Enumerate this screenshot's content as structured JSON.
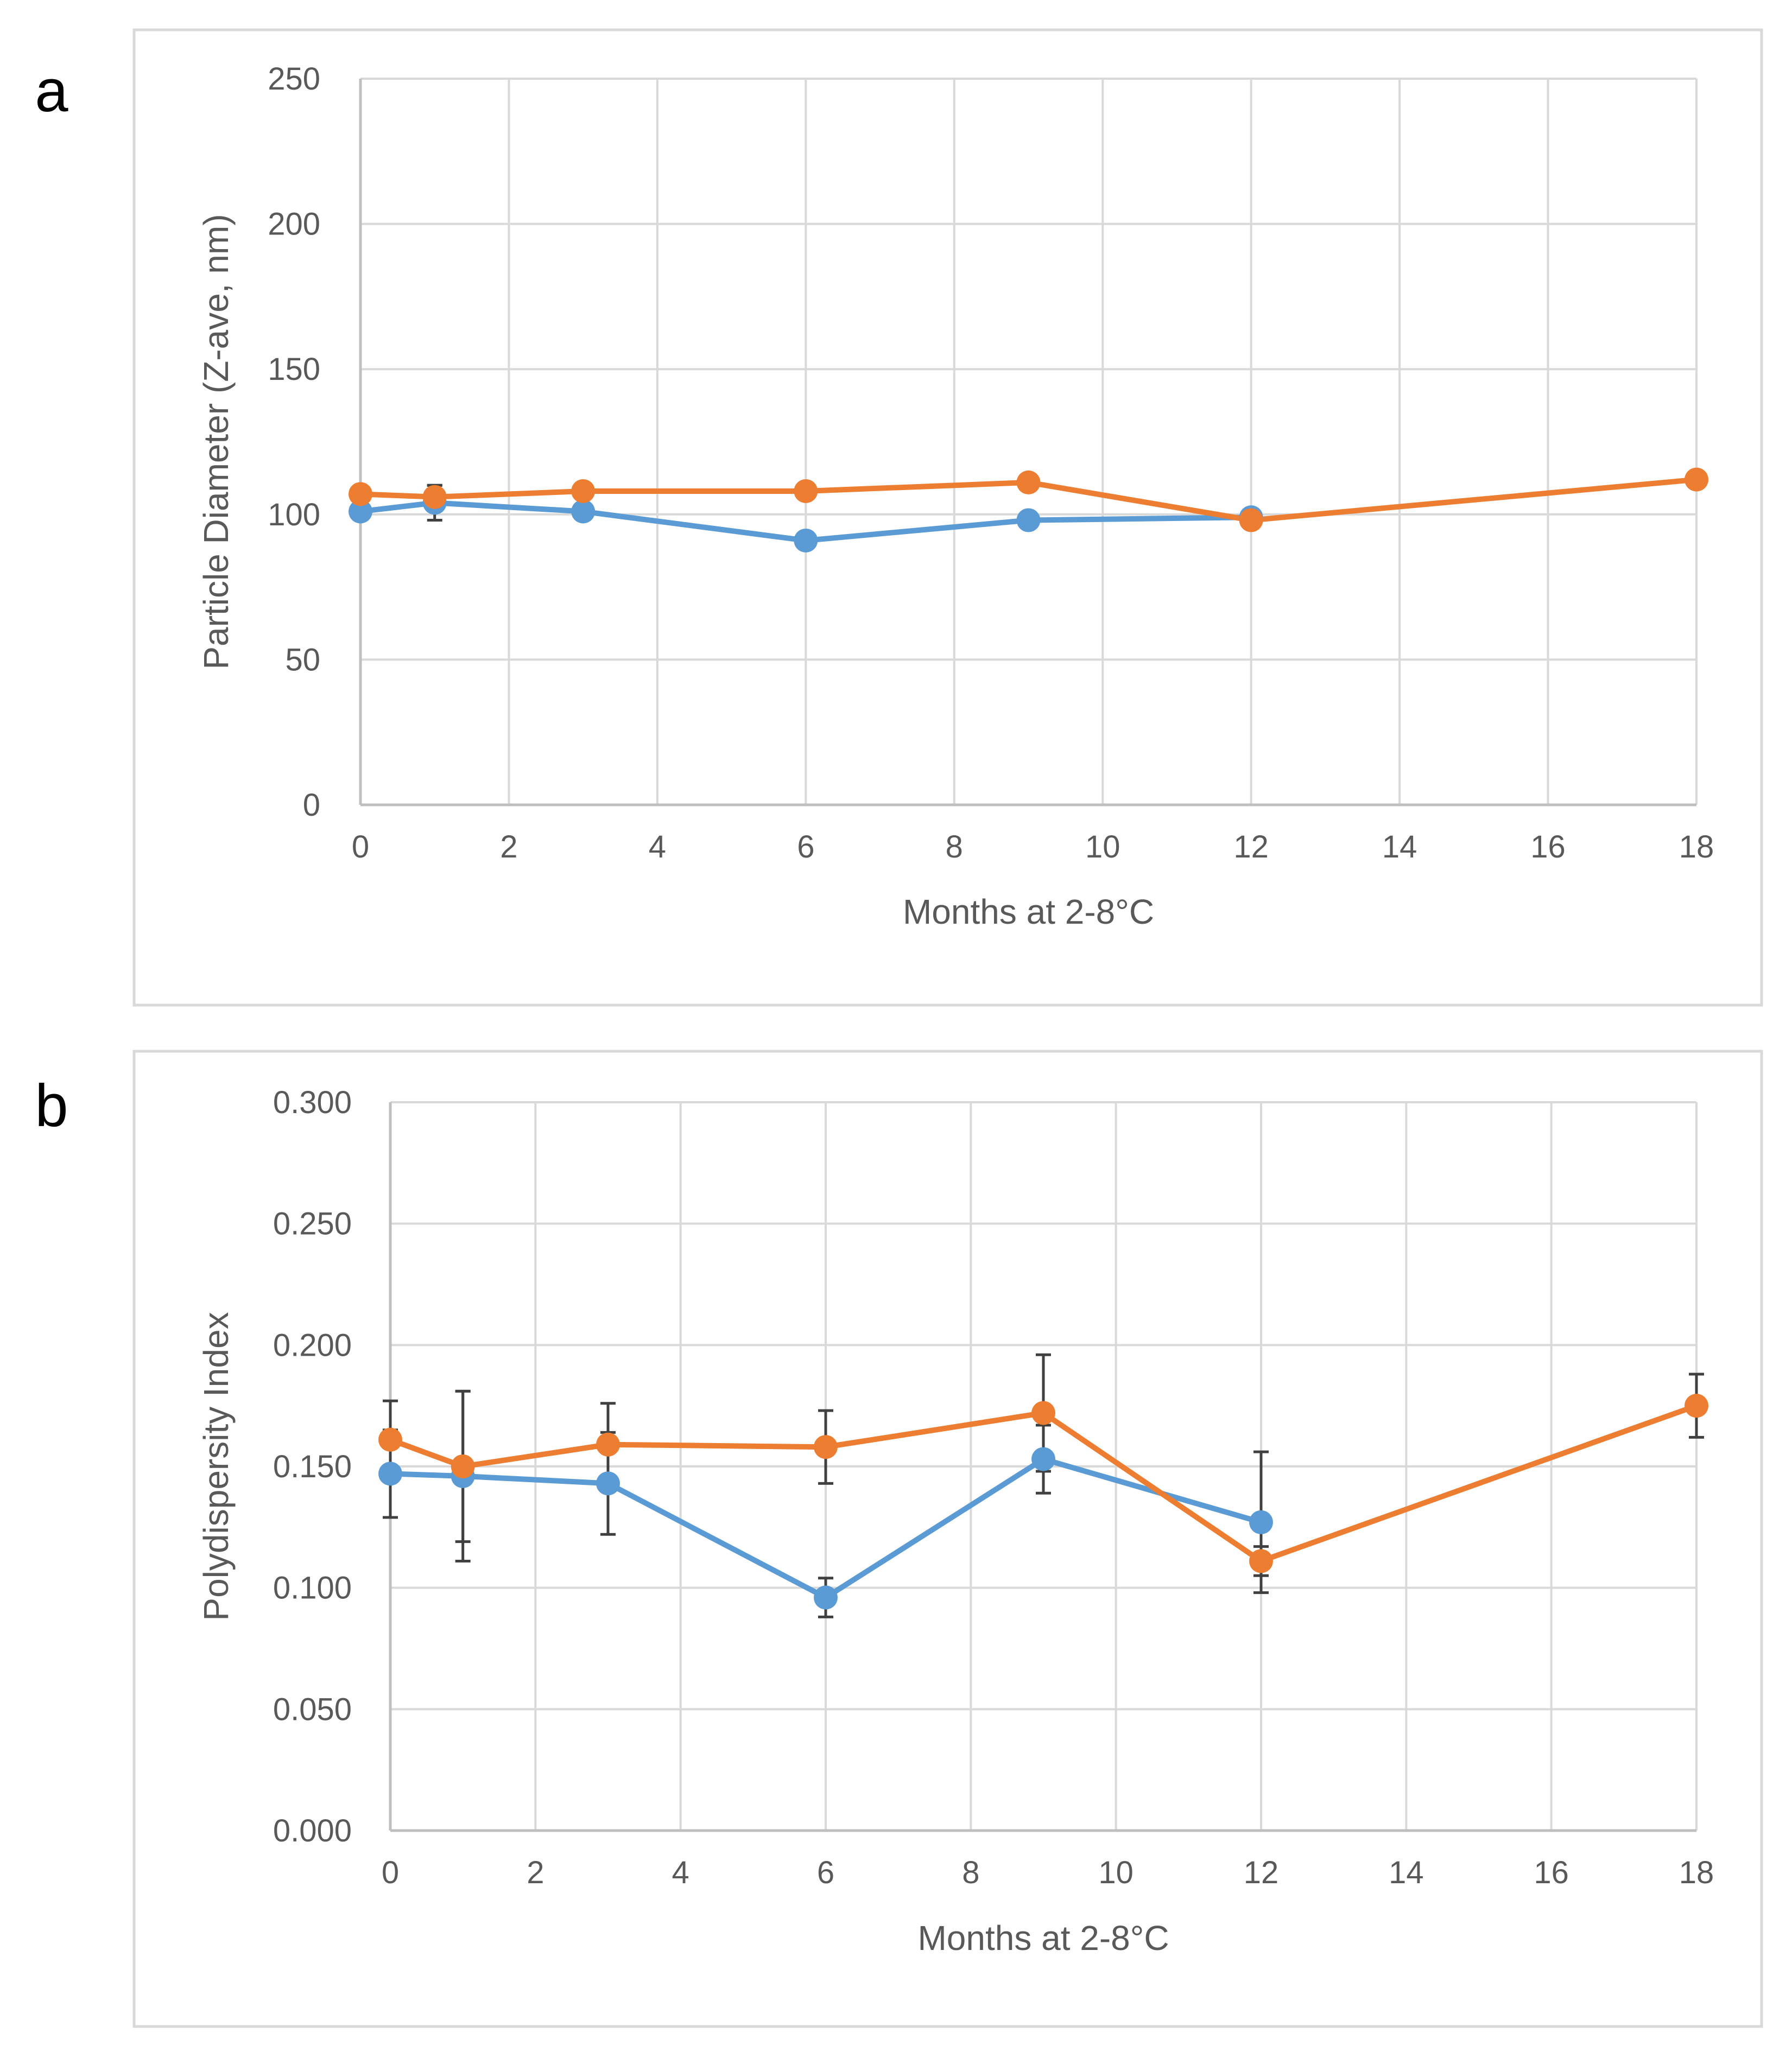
{
  "chart_data": [
    {
      "type": "line",
      "panel_label": "a",
      "title": "",
      "xlabel": "Months at 2-8°C",
      "ylabel": "Particle Diameter (Z-ave, nm)",
      "xlim": [
        0,
        18
      ],
      "ylim": [
        0,
        250
      ],
      "xticks": [
        0,
        2,
        4,
        6,
        8,
        10,
        12,
        14,
        16,
        18
      ],
      "xtick_labels": [
        "0",
        "2",
        "4",
        "6",
        "8",
        "10",
        "12",
        "14",
        "16",
        "18"
      ],
      "yticks": [
        0,
        50,
        100,
        150,
        200,
        250
      ],
      "ytick_labels": [
        "0",
        "50",
        "100",
        "150",
        "200",
        "250"
      ],
      "grid": true,
      "legend": "none",
      "series": [
        {
          "name": "blue",
          "color": "#5b9bd5",
          "x": [
            0,
            1,
            3,
            6,
            9,
            12
          ],
          "y": [
            101,
            104,
            101,
            91,
            98,
            99
          ],
          "err": [
            2,
            6,
            2,
            2,
            2,
            2
          ]
        },
        {
          "name": "orange",
          "color": "#ed7d31",
          "x": [
            0,
            1,
            3,
            6,
            9,
            12,
            18
          ],
          "y": [
            107,
            106,
            108,
            108,
            111,
            98,
            112
          ],
          "err": [
            2,
            4,
            2,
            2,
            2,
            2,
            2
          ]
        }
      ]
    },
    {
      "type": "line",
      "panel_label": "b",
      "title": "",
      "xlabel": "Months at 2-8°C",
      "ylabel": "Polydispersity Index",
      "xlim": [
        0,
        18
      ],
      "ylim": [
        0,
        0.3
      ],
      "xticks": [
        0,
        2,
        4,
        6,
        8,
        10,
        12,
        14,
        16,
        18
      ],
      "xtick_labels": [
        "0",
        "2",
        "4",
        "6",
        "8",
        "10",
        "12",
        "14",
        "16",
        "18"
      ],
      "yticks": [
        0,
        0.05,
        0.1,
        0.15,
        0.2,
        0.25,
        0.3
      ],
      "ytick_labels": [
        "0.000",
        "0.050",
        "0.100",
        "0.150",
        "0.200",
        "0.250",
        "0.300"
      ],
      "grid": true,
      "legend": "none",
      "series": [
        {
          "name": "blue",
          "color": "#5b9bd5",
          "x": [
            0,
            1,
            3,
            6,
            9,
            12
          ],
          "y": [
            0.147,
            0.146,
            0.143,
            0.096,
            0.153,
            0.127
          ],
          "err": [
            0.018,
            0.035,
            0.021,
            0.008,
            0.014,
            0.029
          ]
        },
        {
          "name": "orange",
          "color": "#ed7d31",
          "x": [
            0,
            1,
            3,
            6,
            9,
            12,
            18
          ],
          "y": [
            0.161,
            0.15,
            0.159,
            0.158,
            0.172,
            0.111,
            0.175
          ],
          "err": [
            0.016,
            0.031,
            0.017,
            0.015,
            0.024,
            0.006,
            0.013
          ]
        }
      ]
    }
  ]
}
